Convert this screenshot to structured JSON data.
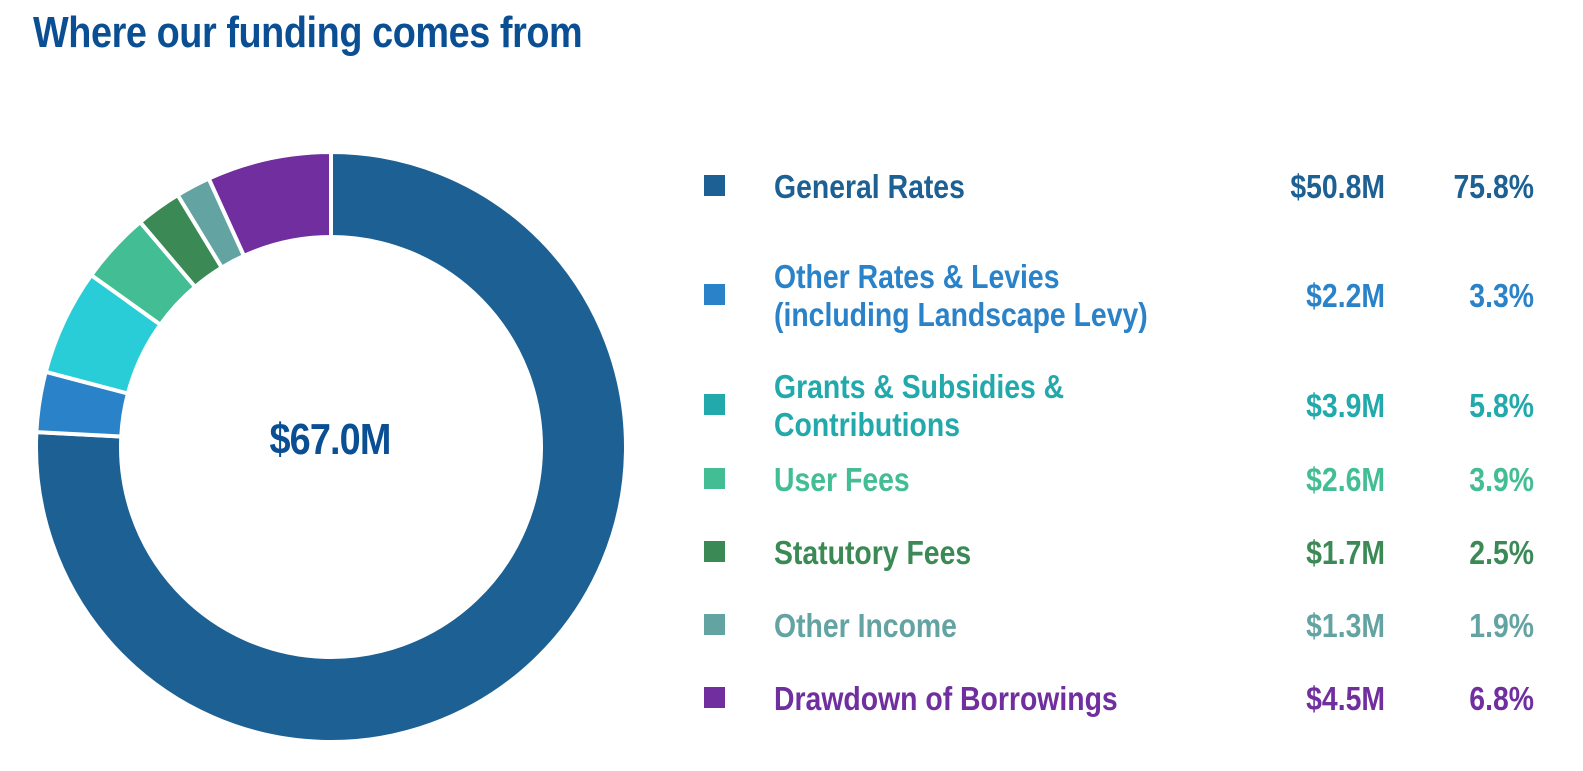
{
  "title": "Where our funding comes from",
  "chart_data": {
    "type": "pie",
    "variant": "donut",
    "total_label": "$67.0M",
    "legend_position": "right",
    "slices": [
      {
        "label": [
          "General Rates"
        ],
        "amount": "$50.8M",
        "percent_label": "75.8%",
        "value": 75.8,
        "color": "#1d6093"
      },
      {
        "label": [
          "Other Rates & Levies",
          "(including Landscape Levy)"
        ],
        "amount": "$2.2M",
        "percent_label": "3.3%",
        "value": 3.3,
        "color": "#2a82c8"
      },
      {
        "label": [
          "Grants & Subsidies &",
          "Contributions"
        ],
        "amount": "$3.9M",
        "percent_label": "5.8%",
        "value": 5.8,
        "color": "#28cdd8"
      },
      {
        "label": [
          "User Fees"
        ],
        "amount": "$2.6M",
        "percent_label": "3.9%",
        "value": 3.9,
        "color": "#43bd94"
      },
      {
        "label": [
          "Statutory Fees"
        ],
        "amount": "$1.7M",
        "percent_label": "2.5%",
        "value": 2.5,
        "color": "#3b8a55"
      },
      {
        "label": [
          "Other Income"
        ],
        "amount": "$1.3M",
        "percent_label": "1.9%",
        "value": 1.9,
        "color": "#63a3a2"
      },
      {
        "label": [
          "Drawdown of Borrowings"
        ],
        "amount": "$4.5M",
        "percent_label": "6.8%",
        "value": 6.8,
        "color": "#702e9e"
      }
    ],
    "legend_text_colors": [
      "#1d6093",
      "#2a82c8",
      "#22a9ab",
      "#43bd94",
      "#3b8a55",
      "#63a3a2",
      "#702e9e"
    ],
    "swatch_colors": [
      "#1d6093",
      "#2a82c8",
      "#22a9ab",
      "#43bd94",
      "#3b8a55",
      "#63a3a2",
      "#702e9e"
    ]
  }
}
